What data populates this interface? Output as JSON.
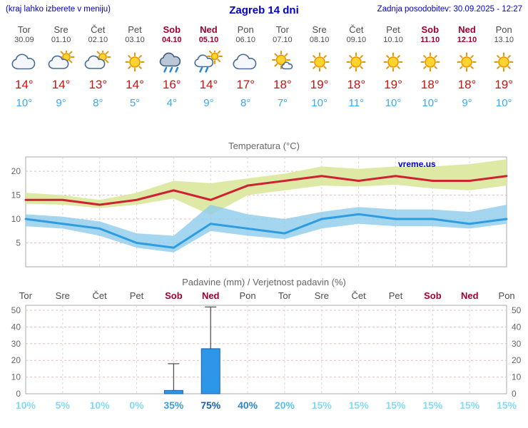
{
  "header": {
    "left_note": "(kraj lahko izberete v meniju)",
    "title": "Zagreb 14 dni",
    "last_update": "Zadnja posodobitev: 30.09.2025 - 12:27"
  },
  "watermark": "vreme.us",
  "days": [
    {
      "name": "Tor",
      "date": "30.09",
      "weekend": false,
      "icon": "cloudy",
      "high": "14°",
      "low": "10°"
    },
    {
      "name": "Sre",
      "date": "01.10",
      "weekend": false,
      "icon": "partly-cloudy",
      "high": "14°",
      "low": "9°"
    },
    {
      "name": "Čet",
      "date": "02.10",
      "weekend": false,
      "icon": "partly-cloudy",
      "high": "13°",
      "low": "8°"
    },
    {
      "name": "Pet",
      "date": "03.10",
      "weekend": false,
      "icon": "sunny",
      "high": "14°",
      "low": "5°"
    },
    {
      "name": "Sob",
      "date": "04.10",
      "weekend": true,
      "icon": "rain",
      "high": "16°",
      "low": "4°"
    },
    {
      "name": "Ned",
      "date": "05.10",
      "weekend": true,
      "icon": "sun-shower",
      "high": "14°",
      "low": "9°"
    },
    {
      "name": "Pon",
      "date": "06.10",
      "weekend": false,
      "icon": "cloudy",
      "high": "17°",
      "low": "8°"
    },
    {
      "name": "Tor",
      "date": "07.10",
      "weekend": false,
      "icon": "mostly-sunny",
      "high": "18°",
      "low": "7°"
    },
    {
      "name": "Sre",
      "date": "08.10",
      "weekend": false,
      "icon": "sunny",
      "high": "19°",
      "low": "10°"
    },
    {
      "name": "Čet",
      "date": "09.10",
      "weekend": false,
      "icon": "sunny",
      "high": "18°",
      "low": "11°"
    },
    {
      "name": "Pet",
      "date": "10.10",
      "weekend": false,
      "icon": "sunny",
      "high": "19°",
      "low": "10°"
    },
    {
      "name": "Sob",
      "date": "11.10",
      "weekend": true,
      "icon": "sunny",
      "high": "18°",
      "low": "10°"
    },
    {
      "name": "Ned",
      "date": "12.10",
      "weekend": true,
      "icon": "sunny",
      "high": "18°",
      "low": "9°"
    },
    {
      "name": "Pon",
      "date": "13.10",
      "weekend": false,
      "icon": "sunny",
      "high": "19°",
      "low": "10°"
    }
  ],
  "chart_data": [
    {
      "type": "line",
      "title": "Temperatura (°C)",
      "x": [
        "Tor",
        "Sre",
        "Čet",
        "Pet",
        "Sob",
        "Ned",
        "Pon",
        "Tor",
        "Sre",
        "Čet",
        "Pet",
        "Sob",
        "Ned",
        "Pon"
      ],
      "ylim": [
        0,
        23
      ],
      "yticks": [
        5,
        10,
        15,
        20
      ],
      "legend_position": "none",
      "grid": true,
      "series": [
        {
          "name": "max-temperature",
          "values": [
            14,
            14,
            13,
            14,
            16,
            14,
            17,
            18,
            19,
            18,
            19,
            18,
            18,
            19
          ],
          "color": "#cc2233"
        },
        {
          "name": "min-temperature",
          "values": [
            10,
            9,
            8,
            5,
            4,
            9,
            8,
            7,
            10,
            11,
            10,
            10,
            9,
            10
          ],
          "color": "#2d9ce0"
        }
      ],
      "bands": [
        {
          "name": "max-temperature-range",
          "upper": [
            15.5,
            15,
            14,
            15.5,
            18,
            17.5,
            18.5,
            19.5,
            21,
            20.5,
            21,
            21,
            21.5,
            22.5
          ],
          "lower": [
            13.2,
            13,
            12.3,
            13,
            14.3,
            10.8,
            15,
            16,
            17,
            16.8,
            17.2,
            16.4,
            16,
            17
          ],
          "color": "#dce8a0",
          "opacity": 0.95
        },
        {
          "name": "min-temperature-range",
          "upper": [
            11,
            10.5,
            9.5,
            7,
            6.5,
            13,
            11,
            10,
            11.5,
            12.5,
            12,
            12,
            11.5,
            13
          ],
          "lower": [
            8.5,
            8,
            6.5,
            4,
            3,
            7.5,
            6.5,
            5.8,
            8,
            9,
            8.5,
            8.5,
            8,
            9
          ],
          "color": "#8fccec",
          "opacity": 0.8
        }
      ]
    },
    {
      "type": "bar",
      "title": "Padavine (mm) / Verjetnost padavin (%)",
      "categories": [
        "Tor",
        "Sre",
        "Čet",
        "Pet",
        "Sob",
        "Ned",
        "Pon",
        "Tor",
        "Sre",
        "Čet",
        "Pet",
        "Sob",
        "Ned",
        "Pon"
      ],
      "values": [
        0,
        0,
        0,
        0,
        2,
        27,
        0,
        0,
        0,
        0,
        0,
        0,
        0,
        0
      ],
      "whisker_max": [
        0,
        0,
        0,
        0,
        18,
        52,
        0,
        0,
        0,
        0,
        0,
        0,
        0,
        0
      ],
      "probabilities": [
        10,
        5,
        10,
        0,
        35,
        75,
        40,
        20,
        15,
        15,
        15,
        15,
        15,
        15
      ],
      "ylim": [
        0,
        53
      ],
      "yticks": [
        0,
        10,
        20,
        30,
        40,
        50
      ],
      "grid": true,
      "bar_color": "#2e96e6",
      "bar_border": "#1663ad",
      "whisker_color": "#555555"
    }
  ],
  "colors": {
    "header_blue": "#0000cc",
    "weekday_text": "#4d4d4d",
    "weekend_text": "#a00030",
    "high_temp": "#cc1111",
    "low_temp": "#3da8f0",
    "axis_text": "#666666",
    "grid_horizontal": "#e7bcbc",
    "grid_vertical": "#d9d9d9",
    "plot_border": "#a8a8a8",
    "prob_scale": [
      {
        "min": 60,
        "color": "#1b5fae"
      },
      {
        "min": 40,
        "color": "#2f86c8"
      },
      {
        "min": 30,
        "color": "#3f9fd8"
      },
      {
        "min": 20,
        "color": "#59c0ea"
      },
      {
        "min": 0,
        "color": "#82daf6"
      }
    ]
  }
}
